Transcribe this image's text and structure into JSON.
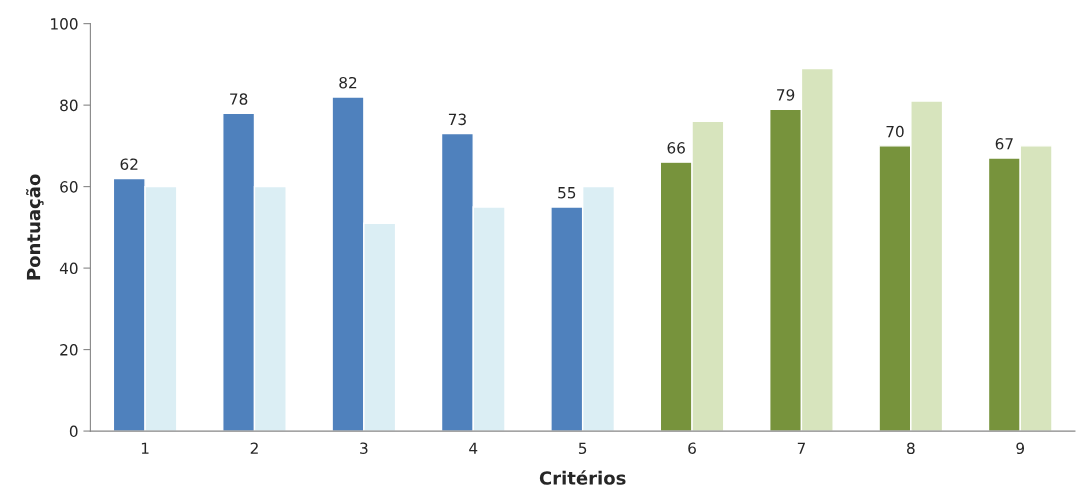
{
  "chart_data": {
    "type": "bar",
    "xlabel": "Critérios",
    "ylabel": "Pontuação",
    "categories": [
      "1",
      "2",
      "3",
      "4",
      "5",
      "6",
      "7",
      "8",
      "9"
    ],
    "series": [
      {
        "colors": [
          "#4f81bd",
          "#4f81bd",
          "#4f81bd",
          "#4f81bd",
          "#4f81bd",
          "#77933c",
          "#77933c",
          "#77933c",
          "#77933c"
        ],
        "values": [
          62,
          78,
          82,
          73,
          55,
          66,
          79,
          70,
          67
        ],
        "value_labels": [
          "62",
          "78",
          "82",
          "73",
          "55",
          "66",
          "79",
          "70",
          "67"
        ]
      },
      {
        "colors": [
          "#dbeef4",
          "#dbeef4",
          "#dbeef4",
          "#dbeef4",
          "#dbeef4",
          "#d7e4bd",
          "#d7e4bd",
          "#d7e4bd",
          "#d7e4bd"
        ],
        "values": [
          60,
          60,
          51,
          55,
          60,
          76,
          89,
          81,
          70
        ]
      }
    ],
    "ylim": [
      0,
      100
    ],
    "yticks": [
      0,
      20,
      40,
      60,
      80,
      100
    ],
    "grid": false,
    "legend": false
  }
}
